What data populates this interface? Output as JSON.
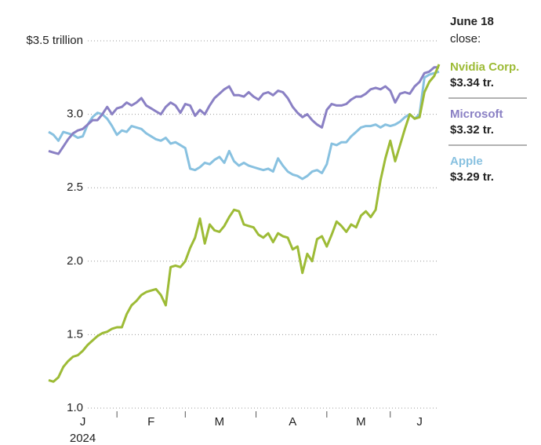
{
  "chart_data": {
    "type": "line",
    "annotation_title": "June 18",
    "annotation_subtitle": "close:",
    "x_sublabel": "2024",
    "categories": [
      null,
      null,
      null,
      null,
      null,
      null,
      null,
      "J",
      null,
      null,
      null,
      null,
      null,
      null,
      null,
      null,
      null,
      null,
      null,
      null,
      null,
      "F",
      null,
      null,
      null,
      null,
      null,
      null,
      null,
      null,
      null,
      null,
      null,
      null,
      null,
      "M",
      null,
      null,
      null,
      null,
      null,
      null,
      null,
      null,
      null,
      null,
      null,
      null,
      null,
      null,
      "A",
      null,
      null,
      null,
      null,
      null,
      null,
      null,
      null,
      null,
      null,
      null,
      null,
      null,
      "M",
      null,
      null,
      null,
      null,
      null,
      null,
      null,
      null,
      null,
      null,
      null,
      "J",
      null,
      null,
      null,
      null
    ],
    "ylim": [
      1.0,
      3.5
    ],
    "yticks": [
      {
        "value": 1,
        "label": "1.0"
      },
      1.5,
      {
        "value": 2,
        "label": "2.0"
      },
      2.5,
      {
        "value": 3,
        "label": "3.0"
      },
      {
        "value": 3.5,
        "label": "$3.5 trillion"
      }
    ],
    "grid": true,
    "series": [
      {
        "name": "Nvidia Corp.",
        "color": "#9dbb36",
        "end_label": "$3.34 tr.",
        "values": [
          1.19,
          1.18,
          1.21,
          1.28,
          1.32,
          1.35,
          1.36,
          1.39,
          1.43,
          1.46,
          1.49,
          1.51,
          1.52,
          1.54,
          1.55,
          1.55,
          1.64,
          1.7,
          1.73,
          1.77,
          1.79,
          1.8,
          1.81,
          1.77,
          1.7,
          1.96,
          1.97,
          1.96,
          2.0,
          2.09,
          2.16,
          2.29,
          2.12,
          2.25,
          2.21,
          2.2,
          2.24,
          2.3,
          2.35,
          2.34,
          2.25,
          2.24,
          2.23,
          2.18,
          2.16,
          2.19,
          2.13,
          2.19,
          2.17,
          2.16,
          2.08,
          2.1,
          1.92,
          2.05,
          2.0,
          2.15,
          2.17,
          2.1,
          2.18,
          2.27,
          2.24,
          2.2,
          2.25,
          2.23,
          2.31,
          2.34,
          2.3,
          2.35,
          2.55,
          2.7,
          2.82,
          2.68,
          2.79,
          2.9,
          3.0,
          2.97,
          2.98,
          3.15,
          3.22,
          3.26,
          3.34
        ]
      },
      {
        "name": "Microsoft",
        "color": "#8a80c4",
        "end_label": "$3.32 tr.",
        "values": [
          2.75,
          2.74,
          2.73,
          2.78,
          2.83,
          2.87,
          2.89,
          2.9,
          2.93,
          2.96,
          2.96,
          3.0,
          3.05,
          3.0,
          3.04,
          3.05,
          3.08,
          3.06,
          3.08,
          3.11,
          3.06,
          3.04,
          3.02,
          3.0,
          3.05,
          3.08,
          3.06,
          3.01,
          3.07,
          3.06,
          2.99,
          3.03,
          3.0,
          3.06,
          3.11,
          3.14,
          3.17,
          3.19,
          3.13,
          3.13,
          3.12,
          3.15,
          3.12,
          3.1,
          3.14,
          3.15,
          3.13,
          3.16,
          3.15,
          3.11,
          3.05,
          3.01,
          2.98,
          3.0,
          2.96,
          2.93,
          2.91,
          3.03,
          3.07,
          3.06,
          3.06,
          3.07,
          3.1,
          3.12,
          3.12,
          3.14,
          3.17,
          3.18,
          3.17,
          3.19,
          3.16,
          3.08,
          3.14,
          3.15,
          3.14,
          3.19,
          3.22,
          3.28,
          3.29,
          3.32,
          3.32
        ]
      },
      {
        "name": "Apple",
        "color": "#88c1e0",
        "end_label": "$3.29 tr.",
        "values": [
          2.88,
          2.86,
          2.82,
          2.88,
          2.87,
          2.86,
          2.84,
          2.85,
          2.93,
          2.98,
          3.01,
          3.0,
          2.97,
          2.92,
          2.86,
          2.89,
          2.88,
          2.92,
          2.91,
          2.9,
          2.87,
          2.85,
          2.83,
          2.82,
          2.84,
          2.8,
          2.81,
          2.79,
          2.77,
          2.63,
          2.62,
          2.64,
          2.67,
          2.66,
          2.69,
          2.71,
          2.67,
          2.75,
          2.68,
          2.65,
          2.67,
          2.65,
          2.64,
          2.63,
          2.62,
          2.63,
          2.61,
          2.7,
          2.65,
          2.61,
          2.59,
          2.58,
          2.56,
          2.58,
          2.61,
          2.62,
          2.6,
          2.66,
          2.8,
          2.79,
          2.81,
          2.81,
          2.85,
          2.88,
          2.91,
          2.92,
          2.92,
          2.93,
          2.91,
          2.93,
          2.92,
          2.93,
          2.95,
          2.98,
          3.0,
          2.97,
          3.0,
          3.25,
          3.27,
          3.28,
          3.29
        ]
      }
    ]
  }
}
